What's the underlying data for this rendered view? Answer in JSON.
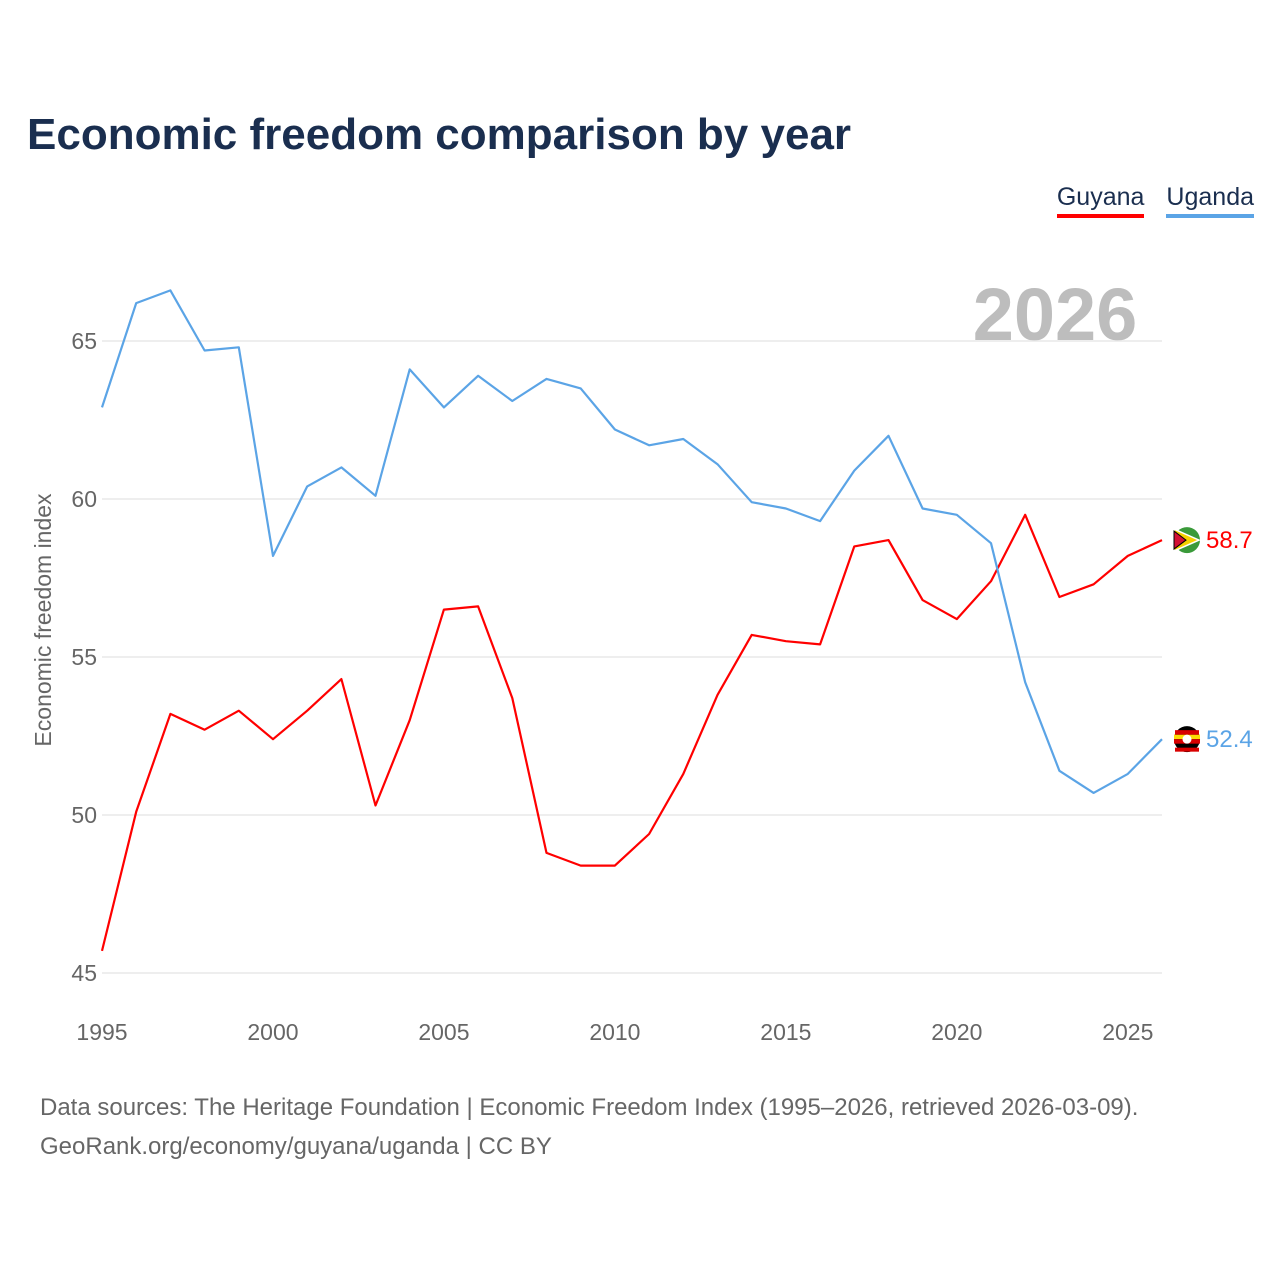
{
  "chart_data": {
    "type": "line",
    "title": "Economic freedom comparison by year",
    "ylabel": "Economic freedom index",
    "xlabel": "",
    "ylim": [
      45,
      67
    ],
    "xlim": [
      1995,
      2026
    ],
    "yticks": [
      45,
      50,
      55,
      60,
      65
    ],
    "xticks": [
      1995,
      2000,
      2005,
      2010,
      2015,
      2020,
      2025
    ],
    "grid": true,
    "legend_position": "top-right",
    "year_label": "2026",
    "x": [
      1995,
      1996,
      1997,
      1998,
      1999,
      2000,
      2001,
      2002,
      2003,
      2004,
      2005,
      2006,
      2007,
      2008,
      2009,
      2010,
      2011,
      2012,
      2013,
      2014,
      2015,
      2016,
      2017,
      2018,
      2019,
      2020,
      2021,
      2022,
      2023,
      2024,
      2025,
      2026
    ],
    "series": [
      {
        "name": "Guyana",
        "color": "#ff0000",
        "end_label": "58.7",
        "values": [
          45.7,
          50.1,
          53.2,
          52.7,
          53.3,
          52.4,
          53.3,
          54.3,
          50.3,
          53.0,
          56.5,
          56.6,
          53.7,
          48.8,
          48.4,
          48.4,
          49.4,
          51.3,
          53.8,
          55.7,
          55.5,
          55.4,
          58.5,
          58.7,
          56.8,
          56.2,
          57.4,
          59.5,
          56.9,
          57.3,
          58.2,
          58.7
        ]
      },
      {
        "name": "Uganda",
        "color": "#5ba4e6",
        "end_label": "52.4",
        "values": [
          62.9,
          66.2,
          66.6,
          64.7,
          64.8,
          58.2,
          60.4,
          61.0,
          60.1,
          64.1,
          62.9,
          63.9,
          63.1,
          63.8,
          63.5,
          62.2,
          61.7,
          61.9,
          61.1,
          59.9,
          59.7,
          59.3,
          60.9,
          62.0,
          59.7,
          59.5,
          58.6,
          54.2,
          51.4,
          50.7,
          51.3,
          52.4
        ]
      }
    ]
  },
  "footer": {
    "line1": "Data sources: The Heritage Foundation | Economic Freedom Index (1995–2026, retrieved 2026-03-09).",
    "line2": "GeoRank.org/economy/guyana/uganda | CC BY"
  }
}
